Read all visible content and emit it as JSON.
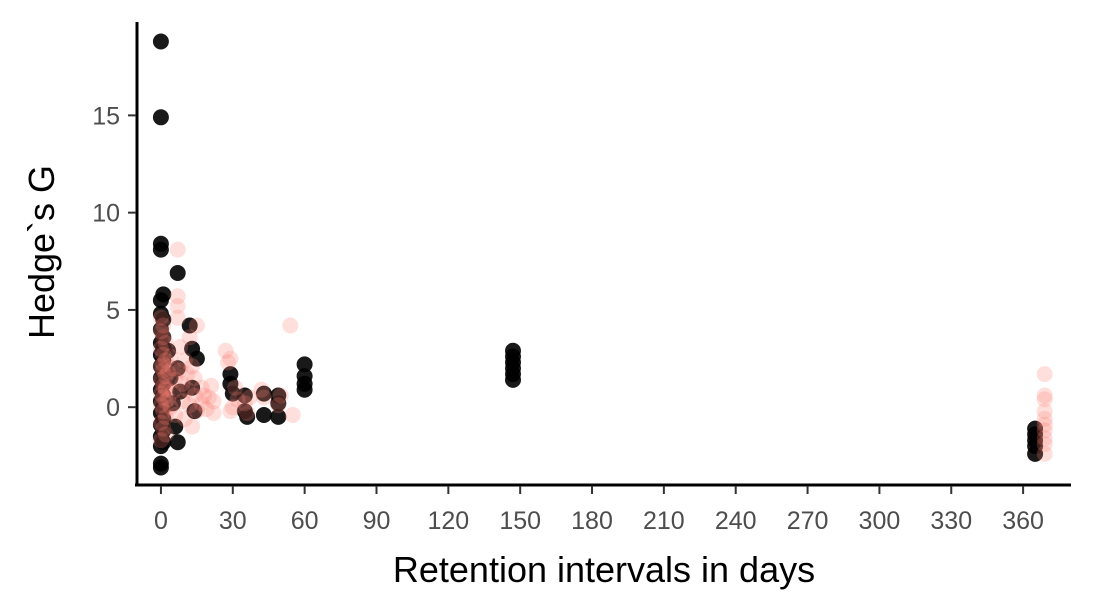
{
  "chart_data": {
    "type": "scatter",
    "title": "",
    "xlabel": "Retention intervals in days",
    "ylabel": "Hedge`s G",
    "xlim": [
      -10,
      380
    ],
    "ylim": [
      -4,
      19.8
    ],
    "xticks": [
      0,
      30,
      60,
      90,
      120,
      150,
      180,
      210,
      240,
      270,
      300,
      330,
      360
    ],
    "yticks": [
      0,
      5,
      10,
      15
    ],
    "grid": false,
    "legend": "none",
    "colors": {
      "group_a": "#000000",
      "group_b": "#fa8072"
    },
    "series": [
      {
        "name": "group_a",
        "color": "#000000",
        "opacity": 0.9,
        "points": [
          [
            0,
            18.8
          ],
          [
            0,
            14.9
          ],
          [
            0,
            8.4
          ],
          [
            0,
            8.1
          ],
          [
            1,
            5.8
          ],
          [
            0,
            5.5
          ],
          [
            0,
            4.8
          ],
          [
            1,
            4.5
          ],
          [
            0,
            4.0
          ],
          [
            1,
            3.6
          ],
          [
            0,
            3.3
          ],
          [
            1,
            3.0
          ],
          [
            0,
            2.7
          ],
          [
            1,
            2.4
          ],
          [
            0,
            2.1
          ],
          [
            1,
            1.8
          ],
          [
            0,
            1.5
          ],
          [
            1,
            1.2
          ],
          [
            0,
            0.9
          ],
          [
            1,
            0.6
          ],
          [
            0,
            0.3
          ],
          [
            1,
            0.0
          ],
          [
            0,
            -0.3
          ],
          [
            1,
            -0.6
          ],
          [
            0,
            -0.9
          ],
          [
            1,
            -1.2
          ],
          [
            0,
            -1.5
          ],
          [
            1,
            -1.8
          ],
          [
            0,
            -2.0
          ],
          [
            0,
            -2.9
          ],
          [
            0,
            -3.1
          ],
          [
            3,
            2.9
          ],
          [
            4,
            1.5
          ],
          [
            5,
            0.2
          ],
          [
            6,
            -1.0
          ],
          [
            7,
            -1.8
          ],
          [
            7,
            6.9
          ],
          [
            7,
            2.0
          ],
          [
            8,
            0.8
          ],
          [
            12,
            4.2
          ],
          [
            13,
            3.0
          ],
          [
            13,
            1.0
          ],
          [
            14,
            -0.2
          ],
          [
            15,
            2.5
          ],
          [
            29,
            1.7
          ],
          [
            29,
            1.2
          ],
          [
            30,
            0.7
          ],
          [
            35,
            0.6
          ],
          [
            35,
            -0.2
          ],
          [
            36,
            -0.5
          ],
          [
            43,
            0.7
          ],
          [
            43,
            -0.4
          ],
          [
            49,
            0.6
          ],
          [
            49,
            0.2
          ],
          [
            49,
            -0.5
          ],
          [
            60,
            2.2
          ],
          [
            60,
            1.6
          ],
          [
            60,
            1.2
          ],
          [
            60,
            0.9
          ],
          [
            147,
            2.9
          ],
          [
            147,
            2.6
          ],
          [
            147,
            2.3
          ],
          [
            147,
            2.0
          ],
          [
            147,
            1.7
          ],
          [
            147,
            1.4
          ],
          [
            365,
            -1.1
          ],
          [
            365,
            -1.4
          ],
          [
            365,
            -1.7
          ],
          [
            365,
            -2.0
          ],
          [
            365,
            -2.4
          ]
        ]
      },
      {
        "name": "group_b",
        "color": "#fa8072",
        "opacity": 0.25,
        "points": [
          [
            0,
            4.6
          ],
          [
            1,
            4.2
          ],
          [
            0,
            3.9
          ],
          [
            1,
            3.6
          ],
          [
            2,
            3.3
          ],
          [
            0,
            3.0
          ],
          [
            1,
            2.7
          ],
          [
            2,
            2.4
          ],
          [
            0,
            2.1
          ],
          [
            1,
            1.9
          ],
          [
            2,
            1.6
          ],
          [
            0,
            1.4
          ],
          [
            1,
            1.1
          ],
          [
            2,
            0.9
          ],
          [
            0,
            0.7
          ],
          [
            1,
            0.5
          ],
          [
            2,
            0.3
          ],
          [
            0,
            0.1
          ],
          [
            1,
            -0.2
          ],
          [
            2,
            -0.5
          ],
          [
            0,
            -0.8
          ],
          [
            1,
            -1.1
          ],
          [
            2,
            -1.4
          ],
          [
            0,
            -1.7
          ],
          [
            1,
            2.2
          ],
          [
            2,
            1.0
          ],
          [
            3,
            0.4
          ],
          [
            3,
            1.8
          ],
          [
            4,
            2.6
          ],
          [
            4,
            0.0
          ],
          [
            5,
            2.0
          ],
          [
            5,
            0.8
          ],
          [
            6,
            1.4
          ],
          [
            6,
            -0.4
          ],
          [
            7,
            8.1
          ],
          [
            7,
            5.7
          ],
          [
            7,
            5.2
          ],
          [
            7,
            4.6
          ],
          [
            8,
            3.1
          ],
          [
            8,
            1.9
          ],
          [
            9,
            1.2
          ],
          [
            9,
            0.3
          ],
          [
            10,
            2.4
          ],
          [
            10,
            -0.6
          ],
          [
            11,
            1.7
          ],
          [
            11,
            0.9
          ],
          [
            12,
            3.6
          ],
          [
            12,
            0.1
          ],
          [
            13,
            2.1
          ],
          [
            13,
            -1.0
          ],
          [
            14,
            1.5
          ],
          [
            14,
            0.6
          ],
          [
            15,
            4.2
          ],
          [
            15,
            -0.2
          ],
          [
            17,
            1.0
          ],
          [
            17,
            0.2
          ],
          [
            18,
            0.6
          ],
          [
            19,
            -0.1
          ],
          [
            20,
            0.5
          ],
          [
            21,
            1.1
          ],
          [
            22,
            0.3
          ],
          [
            22,
            -0.3
          ],
          [
            27,
            2.9
          ],
          [
            28,
            2.3
          ],
          [
            29,
            2.5
          ],
          [
            29,
            -0.2
          ],
          [
            30,
            0.0
          ],
          [
            31,
            1.0
          ],
          [
            32,
            0.4
          ],
          [
            35,
            0.2
          ],
          [
            36,
            -0.3
          ],
          [
            37,
            0.5
          ],
          [
            42,
            0.9
          ],
          [
            43,
            0.5
          ],
          [
            49,
            0.1
          ],
          [
            50,
            0.6
          ],
          [
            54,
            4.2
          ],
          [
            55,
            -0.4
          ],
          [
            369,
            1.7
          ],
          [
            369,
            0.6
          ],
          [
            369,
            0.4
          ],
          [
            369,
            -0.2
          ],
          [
            369,
            -0.6
          ],
          [
            369,
            -0.9
          ],
          [
            369,
            -1.2
          ],
          [
            369,
            -1.6
          ],
          [
            369,
            -1.9
          ],
          [
            369,
            -2.4
          ]
        ]
      }
    ]
  }
}
